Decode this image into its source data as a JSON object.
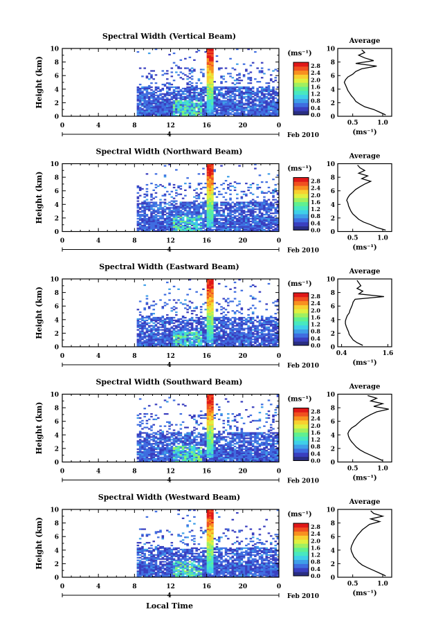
{
  "colors": {
    "colorbar": [
      "#2a2e82",
      "#3a3fbf",
      "#3f6de0",
      "#3f9fe8",
      "#3fd0e8",
      "#48e8c0",
      "#60f090",
      "#a0f060",
      "#e0f040",
      "#f8d030",
      "#f89020",
      "#f05020",
      "#e01818"
    ],
    "background": "#ffffff",
    "axis": "#000000"
  },
  "date_label": "Feb 2010",
  "x_axis_title": "Local Time",
  "unit_label": "(ms⁻¹)",
  "avg_title": "Average",
  "avg_xlabel": "(ms⁻¹)",
  "height_label": "Height (km)",
  "date_marker": "4",
  "chart_data": [
    {
      "type": "heatmap",
      "title": "Spectral Width (Vertical Beam)",
      "ylabel": "Height (km)",
      "x_ticks": [
        "0",
        "4",
        "8",
        "12",
        "16",
        "20",
        "0"
      ],
      "y_ticks": [
        "0",
        "2",
        "4",
        "6",
        "8",
        "10"
      ],
      "xlim": [
        0,
        24
      ],
      "ylim": [
        0,
        10
      ],
      "colorbar_ticks": [
        "0.0",
        "0.4",
        "0.8",
        "1.2",
        "1.6",
        "2.0",
        "2.4",
        "2.8"
      ],
      "colorbar_range": [
        0,
        2.8
      ],
      "average_profile": {
        "x_ticks": [
          "0.5",
          "1.0"
        ],
        "xlim": [
          0.25,
          1.15
        ],
        "ylim": [
          0,
          10
        ],
        "heights": [
          0.2,
          0.6,
          1,
          1.4,
          1.8,
          2.2,
          2.6,
          3,
          3.4,
          3.8,
          4.2,
          4.6,
          5,
          5.4,
          5.8,
          6.2,
          6.6,
          7,
          7.4,
          7.8,
          8.2,
          8.6,
          9,
          9.4,
          9.8
        ],
        "values": [
          1.05,
          0.95,
          0.85,
          0.7,
          0.62,
          0.55,
          0.52,
          0.48,
          0.45,
          0.42,
          0.4,
          0.38,
          0.36,
          0.38,
          0.42,
          0.5,
          0.55,
          0.65,
          0.9,
          0.55,
          0.85,
          0.7,
          0.6,
          0.7,
          0.65
        ]
      }
    },
    {
      "type": "heatmap",
      "title": "Spectral Width (Northward Beam)",
      "ylabel": "Height (km)",
      "x_ticks": [
        "0",
        "4",
        "8",
        "12",
        "16",
        "20",
        "0"
      ],
      "y_ticks": [
        "0",
        "2",
        "4",
        "6",
        "8",
        "10"
      ],
      "xlim": [
        0,
        24
      ],
      "ylim": [
        0,
        10
      ],
      "colorbar_ticks": [
        "0.0",
        "0.4",
        "0.8",
        "1.2",
        "1.6",
        "2.0",
        "2.4",
        "2.8"
      ],
      "colorbar_range": [
        0,
        2.8
      ],
      "average_profile": {
        "x_ticks": [
          "0.5",
          "1.0"
        ],
        "xlim": [
          0.25,
          1.15
        ],
        "ylim": [
          0,
          10
        ],
        "heights": [
          0.2,
          0.6,
          1,
          1.4,
          1.8,
          2.2,
          2.6,
          3,
          3.4,
          3.8,
          4.2,
          4.6,
          5,
          5.4,
          5.8,
          6.2,
          6.6,
          7,
          7.4,
          7.8,
          8.2,
          8.6,
          9,
          9.4,
          9.8
        ],
        "values": [
          1.05,
          0.9,
          0.8,
          0.68,
          0.6,
          0.55,
          0.5,
          0.47,
          0.45,
          0.43,
          0.42,
          0.4,
          0.42,
          0.45,
          0.5,
          0.55,
          0.62,
          0.7,
          0.8,
          0.65,
          0.75,
          0.6,
          0.7,
          0.62,
          0.58
        ]
      }
    },
    {
      "type": "heatmap",
      "title": "Spectral Width (Eastward Beam)",
      "ylabel": "Height (km)",
      "x_ticks": [
        "0",
        "4",
        "8",
        "12",
        "16",
        "20",
        "0"
      ],
      "y_ticks": [
        "0",
        "2",
        "4",
        "6",
        "8",
        "10"
      ],
      "xlim": [
        0,
        24
      ],
      "ylim": [
        0,
        10
      ],
      "colorbar_ticks": [
        "0.0",
        "0.4",
        "0.8",
        "1.2",
        "1.6",
        "2.0",
        "2.4",
        "2.8"
      ],
      "colorbar_range": [
        0,
        2.8
      ],
      "average_profile": {
        "x_ticks": [
          "0.4",
          "1.6"
        ],
        "xlim": [
          0.3,
          1.7
        ],
        "ylim": [
          0,
          10
        ],
        "heights": [
          0.2,
          0.6,
          1,
          1.4,
          1.8,
          2.2,
          2.6,
          3,
          3.4,
          3.8,
          4.2,
          4.6,
          5,
          5.4,
          5.8,
          6.2,
          6.6,
          7,
          7.4,
          7.8,
          8.2,
          8.6,
          9,
          9.4,
          9.8
        ],
        "values": [
          0.95,
          0.8,
          0.7,
          0.65,
          0.6,
          0.58,
          0.55,
          0.52,
          0.5,
          0.5,
          0.52,
          0.55,
          0.6,
          0.62,
          0.65,
          0.68,
          0.7,
          0.75,
          1.5,
          0.85,
          0.95,
          0.8,
          0.9,
          0.85,
          0.8
        ]
      }
    },
    {
      "type": "heatmap",
      "title": "Spectral Width (Southward Beam)",
      "ylabel": "Height (km)",
      "x_ticks": [
        "0",
        "4",
        "8",
        "12",
        "16",
        "20",
        "0"
      ],
      "y_ticks": [
        "0",
        "2",
        "4",
        "6",
        "8",
        "10"
      ],
      "xlim": [
        0,
        24
      ],
      "ylim": [
        0,
        10
      ],
      "colorbar_ticks": [
        "0.0",
        "0.4",
        "0.8",
        "1.2",
        "1.6",
        "2.0",
        "2.4",
        "2.8"
      ],
      "colorbar_range": [
        0,
        2.8
      ],
      "average_profile": {
        "x_ticks": [
          "0.5",
          "1.0"
        ],
        "xlim": [
          0.25,
          1.15
        ],
        "ylim": [
          0,
          10
        ],
        "heights": [
          0.2,
          0.6,
          1,
          1.4,
          1.8,
          2.2,
          2.6,
          3,
          3.4,
          3.8,
          4.2,
          4.6,
          5,
          5.4,
          5.8,
          6.2,
          6.6,
          7,
          7.4,
          7.8,
          8.2,
          8.6,
          9,
          9.4,
          9.8
        ],
        "values": [
          1.0,
          0.9,
          0.8,
          0.7,
          0.62,
          0.56,
          0.52,
          0.48,
          0.45,
          0.43,
          0.42,
          0.44,
          0.48,
          0.55,
          0.6,
          0.65,
          0.72,
          0.8,
          0.9,
          1.1,
          0.85,
          1.0,
          0.8,
          0.9,
          0.75
        ]
      }
    },
    {
      "type": "heatmap",
      "title": "Spectral Width (Westward Beam)",
      "ylabel": "Height (km)",
      "x_ticks": [
        "0",
        "4",
        "8",
        "12",
        "16",
        "20",
        "0"
      ],
      "y_ticks": [
        "0",
        "2",
        "4",
        "6",
        "8",
        "10"
      ],
      "xlim": [
        0,
        24
      ],
      "ylim": [
        0,
        10
      ],
      "colorbar_ticks": [
        "0.0",
        "0.4",
        "0.8",
        "1.2",
        "1.6",
        "2.0",
        "2.4",
        "2.8"
      ],
      "colorbar_range": [
        0,
        2.8
      ],
      "average_profile": {
        "x_ticks": [
          "0.5",
          "1.0"
        ],
        "xlim": [
          0.25,
          1.15
        ],
        "ylim": [
          0,
          10
        ],
        "heights": [
          0.2,
          0.6,
          1,
          1.4,
          1.8,
          2.2,
          2.6,
          3,
          3.4,
          3.8,
          4.2,
          4.6,
          5,
          5.4,
          5.8,
          6.2,
          6.6,
          7,
          7.4,
          7.8,
          8.2,
          8.6,
          9,
          9.4,
          9.8
        ],
        "values": [
          1.05,
          0.95,
          0.85,
          0.75,
          0.66,
          0.6,
          0.56,
          0.52,
          0.5,
          0.48,
          0.47,
          0.48,
          0.5,
          0.52,
          0.55,
          0.58,
          0.62,
          0.66,
          0.72,
          0.78,
          0.95,
          0.8,
          1.0,
          0.85,
          0.8
        ]
      }
    }
  ]
}
